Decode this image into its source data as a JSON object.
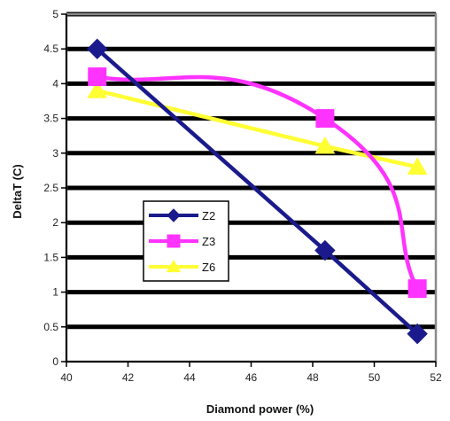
{
  "chart_data": {
    "type": "line",
    "title": "",
    "xlabel": "Diamond power (%)",
    "ylabel": "DeltaT (C)",
    "xlim": [
      40,
      52
    ],
    "ylim": [
      0,
      5
    ],
    "x_ticks": [
      "40",
      "42",
      "44",
      "46",
      "48",
      "50",
      "52"
    ],
    "y_ticks": [
      "0",
      "0.5",
      "1",
      "1.5",
      "2",
      "2.5",
      "3",
      "3.5",
      "4",
      "4.5",
      "5"
    ],
    "grid": "horizontal",
    "legend_position": "center-left",
    "series": [
      {
        "name": "Z2",
        "color": "#1a1a8c",
        "marker": "diamond",
        "curve": "linear",
        "x": [
          41.0,
          48.4,
          51.4
        ],
        "y": [
          4.5,
          1.6,
          0.4
        ]
      },
      {
        "name": "Z3",
        "color": "#ff33ff",
        "marker": "square",
        "curve": "smooth",
        "x": [
          41.0,
          48.4,
          51.4
        ],
        "y": [
          4.1,
          3.5,
          1.05
        ]
      },
      {
        "name": "Z6",
        "color": "#ffff33",
        "marker": "triangle",
        "curve": "linear",
        "x": [
          41.0,
          48.4,
          51.4
        ],
        "y": [
          3.9,
          3.1,
          2.8
        ]
      }
    ]
  }
}
